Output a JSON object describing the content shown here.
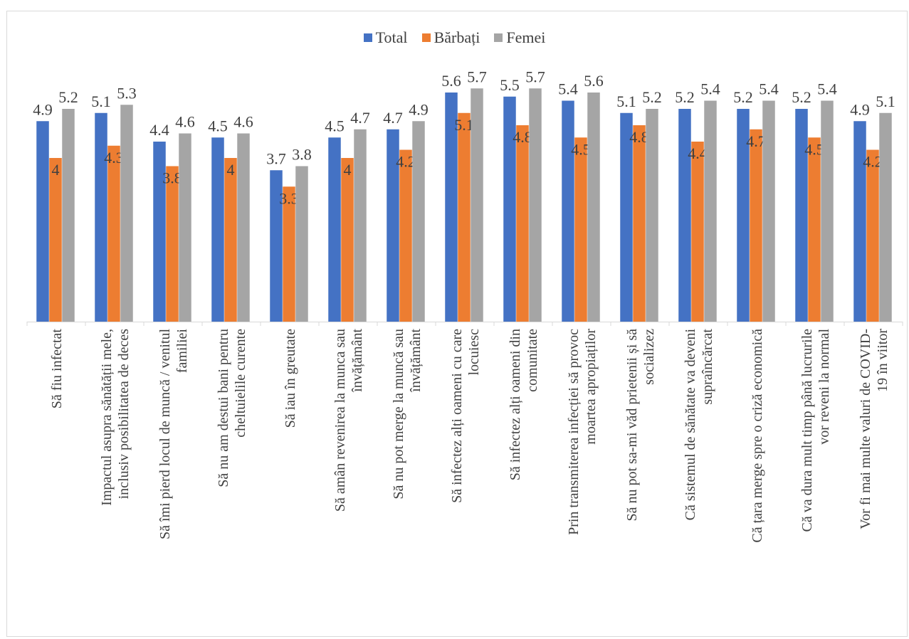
{
  "chart_data": {
    "type": "bar",
    "title": "",
    "xlabel": "",
    "ylabel": "",
    "ylim": [
      0,
      6.2
    ],
    "grid": false,
    "legend_position": "top",
    "categories": [
      "Să fiu infectat",
      "Impactul asupra sănătății mele, inclusiv posibilitatea de deces",
      "Să îmi pierd locul de muncă / venitul familiei",
      "Să nu am destui bani pentru cheltuielile curente",
      "Să iau în greutate",
      "Să amân revenirea la munca sau învățământ",
      "Să nu pot merge la muncă sau învățământ",
      "Să infectez alți oameni cu care locuiesc",
      "Să infectez alți oameni din comunitate",
      "Prin transmiterea infecției să provoc moartea apropiaților",
      "Să nu pot sa-mi văd prietenii și să socializez",
      "Că sistemul de sănătate va deveni supraîncărcat",
      "Că țara merge spre o criză economică",
      "Că va dura mult timp până lucrurile vor reveni la normal",
      "Vor fi mai multe valuri de COVID-19 în viitor"
    ],
    "category_lines": [
      [
        "Să fiu infectat"
      ],
      [
        "Impactul asupra sănătății mele,",
        "inclusiv posibilitatea de deces"
      ],
      [
        "Să îmi pierd locul de muncă / venitul",
        "familiei"
      ],
      [
        "Să nu am destui bani pentru",
        "cheltuielile curente"
      ],
      [
        "Să iau în greutate"
      ],
      [
        "Să amân revenirea la munca sau",
        "învățământ"
      ],
      [
        "Să nu pot merge la muncă sau",
        "învățământ"
      ],
      [
        "Să infectez alți oameni cu care",
        "locuiesc"
      ],
      [
        "Să infectez alți oameni din",
        "comunitate"
      ],
      [
        "Prin transmiterea infecției să provoc",
        "moartea apropiaților"
      ],
      [
        "Să nu pot sa-mi văd prietenii și să",
        "socializez"
      ],
      [
        "Că sistemul de sănătate va deveni",
        "supraîncărcat"
      ],
      [
        "Că țara merge spre o criză economică"
      ],
      [
        "Că va dura mult timp până lucrurile",
        "vor reveni la normal"
      ],
      [
        "Vor fi mai multe valuri de COVID-",
        "19 în viitor"
      ]
    ],
    "series": [
      {
        "name": "Total",
        "color": "#4472c4",
        "values": [
          4.9,
          5.1,
          4.4,
          4.5,
          3.7,
          4.5,
          4.7,
          5.6,
          5.5,
          5.4,
          5.1,
          5.2,
          5.2,
          5.2,
          4.9
        ]
      },
      {
        "name": "Bărbați",
        "color": "#ed7d31",
        "values": [
          4,
          4.3,
          3.8,
          4,
          3.3,
          4,
          4.2,
          5.1,
          4.8,
          4.5,
          4.8,
          4.4,
          4.7,
          4.5,
          4.2
        ]
      },
      {
        "name": "Femei",
        "color": "#a5a5a5",
        "values": [
          5.2,
          5.3,
          4.6,
          4.6,
          3.8,
          4.7,
          4.9,
          5.7,
          5.7,
          5.6,
          5.2,
          5.4,
          5.4,
          5.4,
          5.1
        ]
      }
    ]
  }
}
